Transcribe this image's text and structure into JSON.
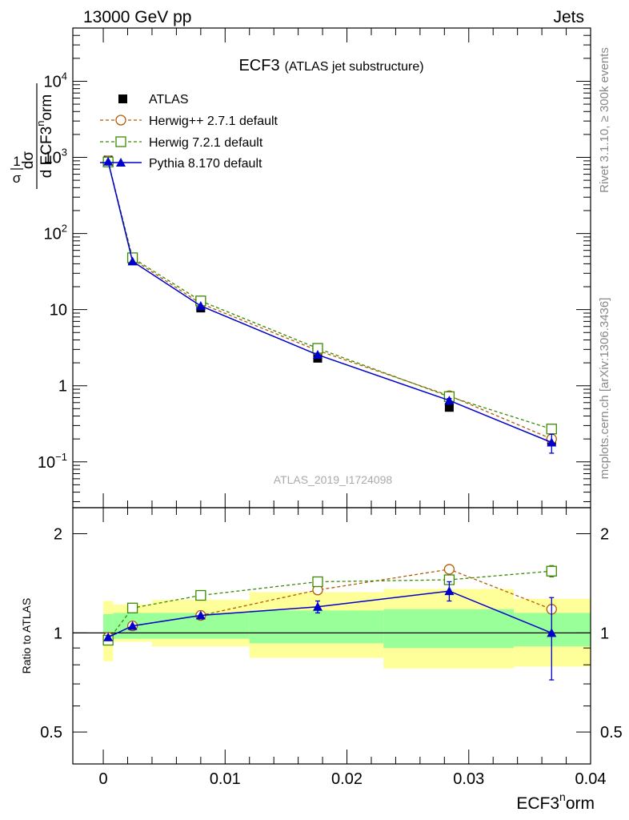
{
  "header": {
    "left": "13000 GeV pp",
    "right": "Jets"
  },
  "side_labels": {
    "top": "Rivet 3.1.10, ≥ 300k events",
    "bottom": "mcplots.cern.ch [arXiv:1306.3436]"
  },
  "chart_data": [
    {
      "type": "line",
      "panel": "main",
      "title": "ECF3",
      "subtitle": "(ATLAS jet substructure)",
      "watermark": "ATLAS_2019_I1724098",
      "ylabel": {
        "frac_num": "1",
        "frac_den": "σ",
        "dsig_num": "dσ",
        "dsig_den": "d ECF3",
        "sup": "n",
        "tail": "orm"
      },
      "xlim": [
        -0.0025,
        0.04
      ],
      "ylim": [
        0.025,
        50000
      ],
      "yscale": "log",
      "y_ticks": [
        {
          "value": 10000,
          "label": "10",
          "exp": "4"
        },
        {
          "value": 1000,
          "label": "10",
          "exp": "3"
        },
        {
          "value": 100,
          "label": "10",
          "exp": "2"
        },
        {
          "value": 10,
          "label": "10",
          "exp": ""
        },
        {
          "value": 1,
          "label": "1",
          "exp": ""
        },
        {
          "value": 0.1,
          "label": "10",
          "exp": "−1"
        }
      ],
      "legend_position": "top-left",
      "series": [
        {
          "name": "ATLAS",
          "color": "#000000",
          "marker": "square-filled",
          "line": "none",
          "x": [
            0.0004,
            0.0024,
            0.008,
            0.0176,
            0.0284,
            0.0368
          ],
          "y": [
            920,
            44,
            10.5,
            2.3,
            0.52,
            0.19
          ]
        },
        {
          "name": "Herwig++ 2.7.1 default",
          "color": "#b35a00",
          "marker": "circle-open",
          "line": "dashed",
          "x": [
            0.0004,
            0.0024,
            0.008,
            0.0176,
            0.0284,
            0.0368
          ],
          "y": [
            900,
            46,
            12,
            2.9,
            0.74,
            0.2
          ]
        },
        {
          "name": "Herwig 7.2.1 default",
          "color": "#3a8a00",
          "marker": "square-open",
          "line": "dashed",
          "x": [
            0.0004,
            0.0024,
            0.008,
            0.0176,
            0.0284,
            0.0368
          ],
          "y": [
            870,
            48,
            13,
            3.1,
            0.72,
            0.27
          ]
        },
        {
          "name": "Pythia 8.170 default",
          "color": "#0000cc",
          "marker": "triangle-filled",
          "line": "solid",
          "x": [
            0.0004,
            0.0024,
            0.008,
            0.0176,
            0.0284,
            0.0368
          ],
          "y": [
            880,
            43,
            11.2,
            2.55,
            0.64,
            0.18
          ],
          "yerr": [
            0,
            0,
            0,
            0,
            0.04,
            0.05
          ]
        }
      ]
    },
    {
      "type": "line",
      "panel": "ratio",
      "ylabel": "Ratio to ATLAS",
      "xlabel": {
        "base": "ECF3",
        "sup": "n",
        "tail": "orm"
      },
      "xlim": [
        -0.0025,
        0.04
      ],
      "ylim": [
        0.4,
        2.4
      ],
      "yscale": "log",
      "x_ticks": [
        {
          "value": 0,
          "label": "0"
        },
        {
          "value": 0.01,
          "label": "0.01"
        },
        {
          "value": 0.02,
          "label": "0.02"
        },
        {
          "value": 0.03,
          "label": "0.03"
        },
        {
          "value": 0.04,
          "label": "0.04"
        }
      ],
      "y_ticks": [
        {
          "value": 0.5,
          "label": "0.5"
        },
        {
          "value": 1,
          "label": "1"
        },
        {
          "value": 2,
          "label": "2"
        }
      ],
      "bands": {
        "bins": [
          0,
          0.0008,
          0.004,
          0.012,
          0.023,
          0.0337,
          0.04
        ],
        "stat_syst_low": [
          0.82,
          0.94,
          0.91,
          0.84,
          0.78,
          0.79
        ],
        "stat_syst_high": [
          1.25,
          1.22,
          1.26,
          1.33,
          1.36,
          1.27
        ],
        "stat_low": [
          0.93,
          0.96,
          0.96,
          0.93,
          0.9,
          0.91
        ],
        "stat_high": [
          1.14,
          1.15,
          1.15,
          1.17,
          1.18,
          1.15
        ],
        "outer_color": "#ffff99",
        "inner_color": "#99ff99"
      },
      "series": [
        {
          "name": "Herwig++ 2.7.1 default",
          "color": "#b35a00",
          "marker": "circle-open",
          "line": "dashed",
          "x": [
            0.0004,
            0.0024,
            0.008,
            0.0176,
            0.0284,
            0.0368
          ],
          "y": [
            0.97,
            1.05,
            1.13,
            1.35,
            1.56,
            1.18
          ]
        },
        {
          "name": "Herwig 7.2.1 default",
          "color": "#3a8a00",
          "marker": "square-open",
          "line": "dashed",
          "x": [
            0.0004,
            0.0024,
            0.008,
            0.0176,
            0.0284,
            0.0368
          ],
          "y": [
            0.95,
            1.19,
            1.3,
            1.43,
            1.45,
            1.54
          ],
          "yerr": [
            0,
            0,
            0,
            0,
            0,
            0.06
          ]
        },
        {
          "name": "Pythia 8.170 default",
          "color": "#0000cc",
          "marker": "triangle-filled",
          "line": "solid",
          "x": [
            0.0004,
            0.0024,
            0.008,
            0.0176,
            0.0284,
            0.0368
          ],
          "y": [
            0.97,
            1.05,
            1.13,
            1.2,
            1.34,
            1.0
          ],
          "yerr": [
            0,
            0,
            0,
            0.05,
            0.09,
            0.28
          ]
        }
      ]
    }
  ]
}
